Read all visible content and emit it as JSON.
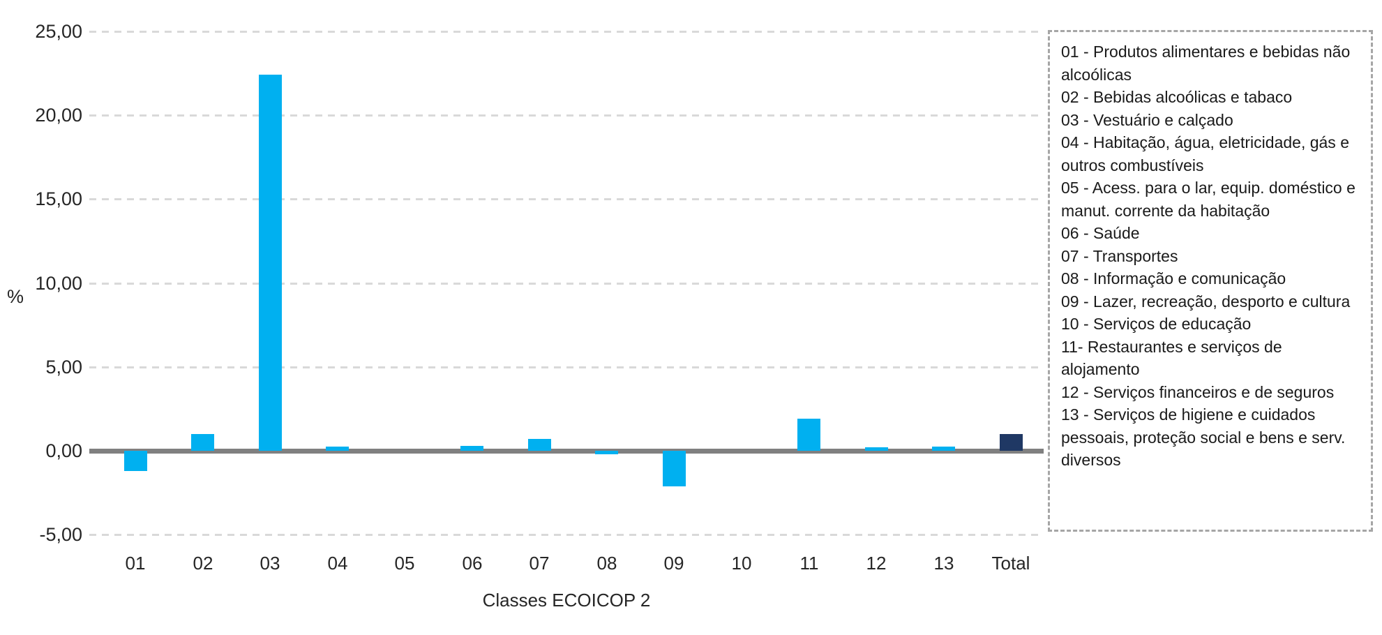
{
  "chart_data": {
    "type": "bar",
    "title": "",
    "xlabel": "Classes ECOICOP 2",
    "ylabel": "%",
    "categories": [
      "01",
      "02",
      "03",
      "04",
      "05",
      "06",
      "07",
      "08",
      "09",
      "10",
      "11",
      "12",
      "13",
      "Total"
    ],
    "values": [
      -1.2,
      1.0,
      22.4,
      0.25,
      0.0,
      0.3,
      0.7,
      -0.2,
      -2.1,
      0.0,
      1.9,
      0.2,
      0.25,
      1.0
    ],
    "ylim": [
      -5,
      25
    ],
    "ytick_values": [
      25,
      20,
      15,
      10,
      5,
      0,
      -5
    ],
    "ytick_labels": [
      "25,00",
      "20,00",
      "15,00",
      "10,00",
      "5,00",
      "0,00",
      "-5,00"
    ],
    "grid": "horizontal-dashed",
    "legend_position": "right",
    "bar_color": "#00B0F0",
    "total_bar_color": "#1F3864",
    "axis_line_color": "#808080",
    "gridline_color": "#D9D9D9"
  },
  "legend": {
    "items": [
      "01 - Produtos alimentares e bebidas não alcoólicas",
      "02 - Bebidas alcoólicas e tabaco",
      "03 - Vestuário e calçado",
      "04 - Habitação, água, eletricidade, gás e outros combustíveis",
      "05 - Acess. para o lar, equip. doméstico e manut. corrente da habitação",
      "06 - Saúde",
      "07 - Transportes",
      "08 - Informação e comunicação",
      "09 - Lazer, recreação, desporto e cultura",
      "10 - Serviços de educação",
      "11- Restaurantes e serviços de alojamento",
      "12 - Serviços financeiros e de seguros",
      "13 - Serviços de higiene e cuidados pessoais, proteção social e bens e serv. diversos"
    ]
  }
}
